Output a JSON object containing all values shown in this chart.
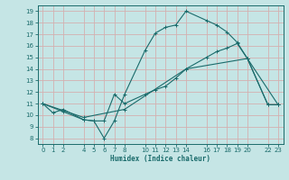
{
  "xlabel": "Humidex (Indice chaleur)",
  "bg_color": "#c5e5e5",
  "line_color": "#1a6b6b",
  "grid_color": "#d4b0b0",
  "yticks": [
    8,
    9,
    10,
    11,
    12,
    13,
    14,
    15,
    16,
    17,
    18,
    19
  ],
  "xticks": [
    0,
    1,
    2,
    4,
    5,
    6,
    7,
    8,
    10,
    11,
    12,
    13,
    14,
    16,
    17,
    18,
    19,
    20,
    22,
    23
  ],
  "ylim": [
    7.5,
    19.5
  ],
  "xlim": [
    -0.5,
    23.5
  ],
  "line1_x": [
    0,
    1,
    2,
    4,
    5,
    6,
    7,
    8,
    10,
    11,
    12,
    13,
    14,
    16,
    17,
    18,
    19,
    20,
    22,
    23
  ],
  "line1_y": [
    11.0,
    10.2,
    10.5,
    9.6,
    9.5,
    8.0,
    9.5,
    11.8,
    15.6,
    17.1,
    17.6,
    17.8,
    19.0,
    18.2,
    17.8,
    17.2,
    16.3,
    14.9,
    10.9,
    10.9
  ],
  "line2_x": [
    0,
    2,
    4,
    5,
    6,
    7,
    8,
    10,
    11,
    12,
    13,
    14,
    16,
    17,
    18,
    19,
    20,
    22,
    23
  ],
  "line2_y": [
    11.0,
    10.3,
    9.6,
    9.5,
    9.5,
    11.8,
    11.0,
    11.8,
    12.2,
    12.5,
    13.2,
    14.0,
    15.0,
    15.5,
    15.8,
    16.2,
    14.9,
    10.9,
    10.9
  ],
  "line3_x": [
    0,
    4,
    8,
    14,
    20,
    23
  ],
  "line3_y": [
    11.0,
    9.8,
    10.5,
    14.0,
    14.9,
    10.9
  ]
}
